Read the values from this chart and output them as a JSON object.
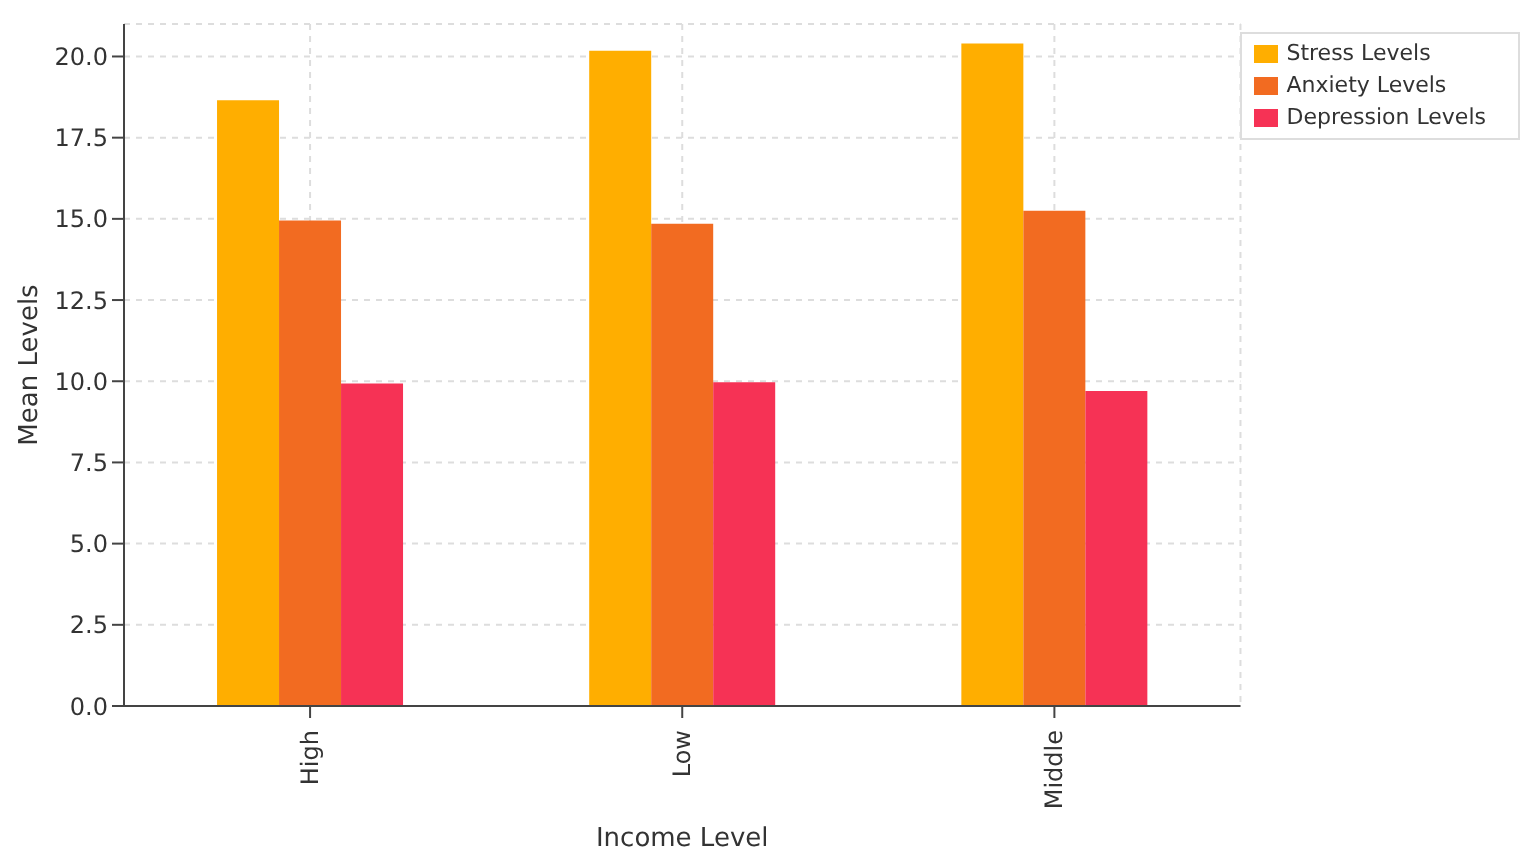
{
  "chart_data": {
    "type": "bar",
    "xlabel": "Income Level",
    "ylabel": "Mean Levels",
    "categories": [
      "High",
      "Low",
      "Middle"
    ],
    "series": [
      {
        "name": "Stress Levels",
        "color": "#ffae00",
        "values": [
          18.65,
          20.18,
          20.4
        ]
      },
      {
        "name": "Anxiety Levels",
        "color": "#f26b21",
        "values": [
          14.95,
          14.85,
          15.25
        ]
      },
      {
        "name": "Depression Levels",
        "color": "#f63255",
        "values": [
          9.93,
          9.97,
          9.7
        ]
      }
    ],
    "ylim": [
      0,
      21
    ],
    "yticks": [
      {
        "value": 0,
        "label": "0.0"
      },
      {
        "value": 2.5,
        "label": "2.5"
      },
      {
        "value": 5,
        "label": "5.0"
      },
      {
        "value": 7.5,
        "label": "7.5"
      },
      {
        "value": 10,
        "label": "10.0"
      },
      {
        "value": 12.5,
        "label": "12.5"
      },
      {
        "value": 15,
        "label": "15.0"
      },
      {
        "value": 17.5,
        "label": "17.5"
      },
      {
        "value": 20,
        "label": "20.0"
      }
    ],
    "grid": true,
    "legend": "top right"
  }
}
